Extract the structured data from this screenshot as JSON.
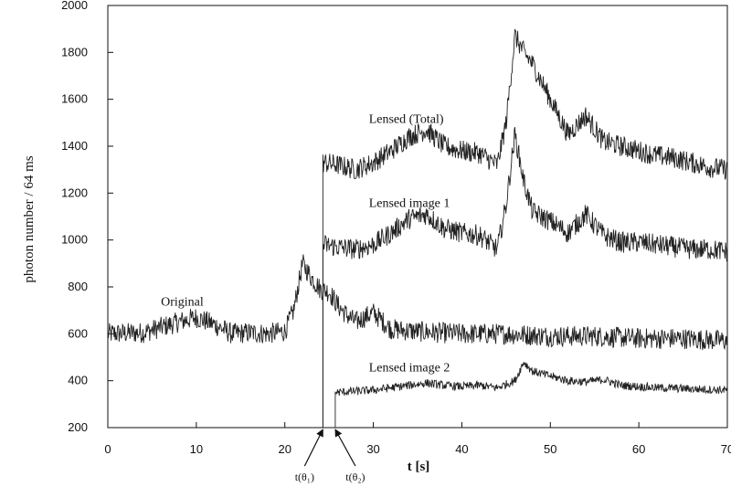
{
  "chart_data": {
    "type": "line",
    "xlabel": "t [s]",
    "ylabel": "photon number / 64 ms",
    "xlim": [
      0,
      70
    ],
    "ylim": [
      200,
      2000
    ],
    "xticks": [
      0,
      10,
      20,
      30,
      40,
      50,
      60,
      70
    ],
    "yticks": [
      200,
      400,
      600,
      800,
      1000,
      1200,
      1400,
      1600,
      1800,
      2000
    ],
    "grid": false,
    "series": [
      {
        "name": "Original",
        "x": [
          0,
          4,
          8,
          10,
          12,
          14,
          16,
          18,
          20,
          21,
          22,
          23,
          24,
          25,
          26,
          27,
          28,
          30,
          32,
          35,
          40,
          45,
          50,
          55,
          60,
          65,
          70
        ],
        "y": [
          600,
          605,
          650,
          670,
          640,
          600,
          605,
          600,
          610,
          700,
          900,
          840,
          790,
          780,
          720,
          680,
          650,
          690,
          620,
          610,
          600,
          600,
          590,
          590,
          580,
          580,
          570
        ]
      },
      {
        "name": "Lensed (Total)",
        "x": [
          24.3,
          26,
          28,
          30,
          32,
          34,
          36,
          38,
          40,
          42,
          44,
          45,
          46,
          47,
          48,
          50,
          52,
          54,
          56,
          58,
          60,
          62,
          64,
          66,
          68,
          70
        ],
        "y": [
          1330,
          1320,
          1300,
          1330,
          1380,
          1440,
          1470,
          1400,
          1380,
          1370,
          1320,
          1500,
          1870,
          1800,
          1750,
          1600,
          1450,
          1530,
          1420,
          1400,
          1380,
          1360,
          1350,
          1330,
          1310,
          1300
        ]
      },
      {
        "name": "Lensed image 1",
        "x": [
          24.3,
          26,
          28,
          30,
          32,
          34,
          36,
          38,
          40,
          42,
          44,
          45,
          46,
          47,
          48,
          50,
          52,
          54,
          56,
          58,
          60,
          62,
          64,
          66,
          68,
          70
        ],
        "y": [
          980,
          970,
          960,
          980,
          1030,
          1090,
          1110,
          1050,
          1030,
          1020,
          960,
          1150,
          1450,
          1250,
          1120,
          1080,
          1030,
          1110,
          1020,
          990,
          990,
          980,
          970,
          960,
          960,
          950
        ]
      },
      {
        "name": "Lensed image 2",
        "x": [
          25.7,
          28,
          30,
          32,
          34,
          36,
          38,
          40,
          42,
          44,
          46,
          47,
          48,
          50,
          52,
          54,
          56,
          58,
          60,
          62,
          64,
          66,
          68,
          70
        ],
        "y": [
          350,
          355,
          360,
          370,
          380,
          390,
          380,
          375,
          380,
          370,
          400,
          480,
          440,
          420,
          400,
          395,
          405,
          380,
          375,
          370,
          368,
          365,
          362,
          360
        ]
      }
    ],
    "markers": [
      {
        "label": "t(θ₁)",
        "x": 24.3
      },
      {
        "label": "t(θ₂)",
        "x": 25.7
      }
    ]
  }
}
